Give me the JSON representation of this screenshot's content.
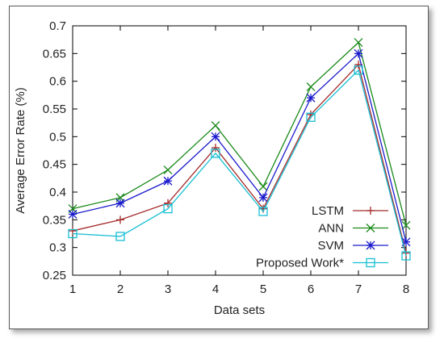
{
  "chart_data": {
    "type": "line",
    "title": "",
    "xlabel": "Data sets",
    "ylabel": "Average Error Rate (%)",
    "x": [
      1,
      2,
      3,
      4,
      5,
      6,
      7,
      8
    ],
    "xlim": [
      1,
      8
    ],
    "ylim": [
      0.25,
      0.7
    ],
    "xticks": [
      "1",
      "2",
      "3",
      "4",
      "5",
      "6",
      "7",
      "8"
    ],
    "yticks": [
      "0.25",
      "0.3",
      "0.35",
      "0.4",
      "0.45",
      "0.5",
      "0.55",
      "0.6",
      "0.65",
      "0.7"
    ],
    "grid": false,
    "legend_position": "bottom-right",
    "series": [
      {
        "name": "LSTM",
        "color": "#a52a2a",
        "marker": "plus",
        "values": [
          0.33,
          0.35,
          0.38,
          0.48,
          0.37,
          0.54,
          0.63,
          0.29
        ]
      },
      {
        "name": "ANN",
        "color": "#1a8a1a",
        "marker": "x",
        "values": [
          0.37,
          0.39,
          0.44,
          0.52,
          0.41,
          0.59,
          0.67,
          0.34
        ]
      },
      {
        "name": "SVM",
        "color": "#1a1acc",
        "marker": "star",
        "values": [
          0.36,
          0.38,
          0.42,
          0.5,
          0.39,
          0.57,
          0.65,
          0.31
        ]
      },
      {
        "name": "Proposed Work*",
        "color": "#19bfd4",
        "marker": "square",
        "values": [
          0.325,
          0.32,
          0.37,
          0.47,
          0.365,
          0.535,
          0.62,
          0.285
        ]
      }
    ]
  }
}
